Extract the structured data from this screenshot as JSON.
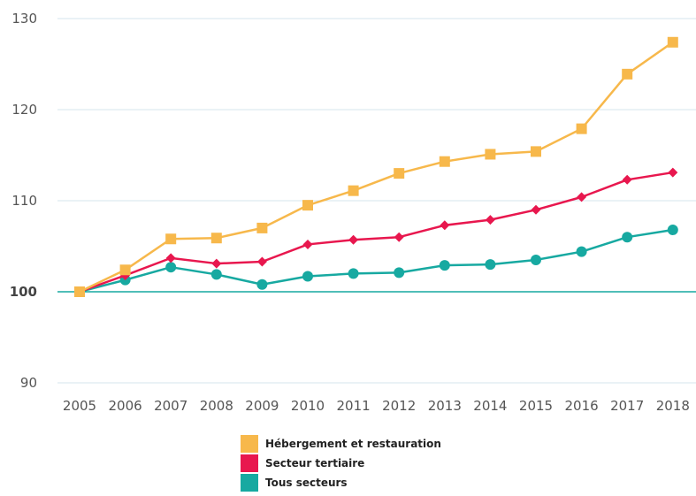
{
  "chart_data": {
    "type": "line",
    "title": "",
    "xlabel": "",
    "ylabel": "",
    "x": [
      "2005",
      "2006",
      "2007",
      "2008",
      "2009",
      "2010",
      "2011",
      "2012",
      "2013",
      "2014",
      "2015",
      "2016",
      "2017",
      "2018"
    ],
    "ylim": [
      90,
      130
    ],
    "yticks": [
      90,
      100,
      110,
      120,
      130
    ],
    "baseline": 100,
    "grid": true,
    "legend_position": "bottom-center",
    "series": [
      {
        "name": "Hébergement et restauration",
        "color": "#F7B84B",
        "marker": "square",
        "values": [
          100,
          102.4,
          105.8,
          105.9,
          107.0,
          109.5,
          111.1,
          113.0,
          114.3,
          115.1,
          115.4,
          117.9,
          123.9,
          127.4
        ]
      },
      {
        "name": "Secteur tertiaire",
        "color": "#E8174E",
        "marker": "diamond",
        "values": [
          100,
          101.8,
          103.7,
          103.1,
          103.3,
          105.2,
          105.7,
          106.0,
          107.3,
          107.9,
          109.0,
          110.4,
          112.3,
          113.1
        ]
      },
      {
        "name": "Tous secteurs",
        "color": "#17A9A1",
        "marker": "circle",
        "values": [
          100,
          101.3,
          102.7,
          101.9,
          100.8,
          101.7,
          102.0,
          102.1,
          102.9,
          103.0,
          103.5,
          104.4,
          106.0,
          106.8
        ]
      }
    ]
  }
}
